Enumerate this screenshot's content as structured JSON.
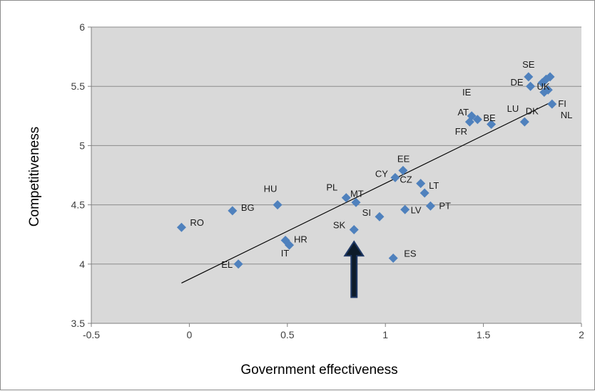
{
  "chart_data": {
    "type": "scatter",
    "title": "",
    "xlabel": "Government effectiveness",
    "ylabel": "Competitiveness",
    "xlim": [
      -0.5,
      2
    ],
    "ylim": [
      3.5,
      6
    ],
    "x_ticks": [
      "-0.5",
      "0",
      "0.5",
      "1",
      "1.5",
      "2"
    ],
    "y_ticks": [
      "3.5",
      "4",
      "4.5",
      "5",
      "5.5",
      "6"
    ],
    "grid": "horizontal",
    "legend": "none",
    "marker_color": "#4f81bd",
    "plot_background": "#d9d9d9",
    "trendline": {
      "x": [
        -0.04,
        1.85
      ],
      "y": [
        3.84,
        5.37
      ]
    },
    "points": [
      {
        "label": "RO",
        "x": -0.04,
        "y": 4.31
      },
      {
        "label": "BG",
        "x": 0.22,
        "y": 4.45
      },
      {
        "label": "EL",
        "x": 0.25,
        "y": 4.0
      },
      {
        "label": "HU",
        "x": 0.45,
        "y": 4.5
      },
      {
        "label": "HR",
        "x": 0.49,
        "y": 4.2
      },
      {
        "label": "IT",
        "x": 0.51,
        "y": 4.16
      },
      {
        "label": "PL",
        "x": 0.8,
        "y": 4.56
      },
      {
        "label": "MT",
        "x": 0.85,
        "y": 4.52
      },
      {
        "label": "SK",
        "x": 0.84,
        "y": 4.29
      },
      {
        "label": "SI",
        "x": 0.97,
        "y": 4.4
      },
      {
        "label": "CY",
        "x": 1.05,
        "y": 4.73
      },
      {
        "label": "EE",
        "x": 1.09,
        "y": 4.79
      },
      {
        "label": "CZ",
        "x": 1.18,
        "y": 4.68
      },
      {
        "label": "LT",
        "x": 1.2,
        "y": 4.6
      },
      {
        "label": "LV",
        "x": 1.1,
        "y": 4.46
      },
      {
        "label": "PT",
        "x": 1.23,
        "y": 4.49
      },
      {
        "label": "ES",
        "x": 1.04,
        "y": 4.05
      },
      {
        "label": "AT",
        "x": 1.44,
        "y": 5.25
      },
      {
        "label": "FR",
        "x": 1.43,
        "y": 5.2
      },
      {
        "label": "BE",
        "x": 1.47,
        "y": 5.22
      },
      {
        "label": "",
        "x": 1.54,
        "y": 5.18
      },
      {
        "label": "LU",
        "x": 1.71,
        "y": 5.2
      },
      {
        "label": "SE",
        "x": 1.73,
        "y": 5.58
      },
      {
        "label": "DE",
        "x": 1.74,
        "y": 5.5
      },
      {
        "label": "IE",
        "x": 1.8,
        "y": 5.53
      },
      {
        "label": "UK",
        "x": 1.82,
        "y": 5.56
      },
      {
        "label": "",
        "x": 1.84,
        "y": 5.58
      },
      {
        "label": "DK",
        "x": 1.81,
        "y": 5.45
      },
      {
        "label": "FI",
        "x": 1.83,
        "y": 5.47
      },
      {
        "label": "NL",
        "x": 1.85,
        "y": 5.35
      }
    ]
  },
  "annotation": {
    "arrow_x": 0.84,
    "arrow_y_from": 3.72,
    "arrow_y_to": 4.19,
    "color": "#1f3864"
  }
}
